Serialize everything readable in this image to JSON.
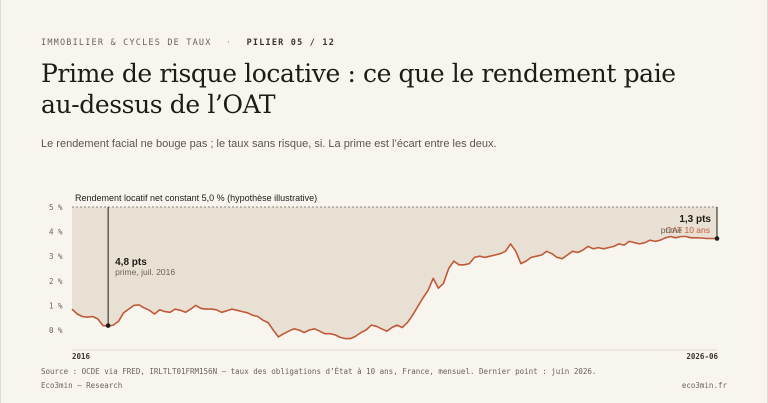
{
  "header": {
    "kicker": "IMMOBILIER & CYCLES DE TAUX",
    "separator": "·",
    "pillar": "PILIER 05 / 12",
    "title": "Prime de risque locative : ce que le rendement paie au-dessus de l’OAT",
    "subtitle": "Le rendement facial ne bouge pas ; le taux sans risque, si. La prime est l’écart entre les deux."
  },
  "colors": {
    "background": "#f8f5ee",
    "area_fill": "#e5dccd",
    "line": "#c0593a",
    "text": "#1e1b17",
    "muted": "#6b6459"
  },
  "chart_data": {
    "type": "area",
    "reference_line": {
      "value": 5.0,
      "label": "Rendement locatif net constant 5,0 % (hypothèse illustrative)"
    },
    "y_ticks": [
      "5 %",
      "4 %",
      "3 %",
      "2 %",
      "1 %",
      "0 %"
    ],
    "y_tick_values": [
      5,
      4,
      3,
      2,
      1,
      0
    ],
    "ylim": [
      -0.5,
      5
    ],
    "x_start_label": "2016",
    "x_end_label": "2026-06",
    "series": [
      {
        "name": "OAT 10 ans",
        "start": "2016-01",
        "frequency": "monthly",
        "values": [
          0.85,
          0.65,
          0.55,
          0.52,
          0.55,
          0.45,
          0.18,
          0.16,
          0.2,
          0.35,
          0.7,
          0.85,
          1.0,
          1.02,
          0.9,
          0.8,
          0.65,
          0.82,
          0.75,
          0.72,
          0.85,
          0.8,
          0.72,
          0.85,
          1.0,
          0.88,
          0.85,
          0.85,
          0.82,
          0.72,
          0.78,
          0.85,
          0.8,
          0.75,
          0.7,
          0.6,
          0.55,
          0.4,
          0.3,
          0.0,
          -0.28,
          -0.15,
          -0.05,
          0.05,
          0.0,
          -0.1,
          0.0,
          0.05,
          -0.05,
          -0.15,
          -0.15,
          -0.2,
          -0.3,
          -0.35,
          -0.35,
          -0.25,
          -0.1,
          0.0,
          0.2,
          0.15,
          0.05,
          -0.05,
          0.1,
          0.2,
          0.1,
          0.3,
          0.6,
          0.95,
          1.3,
          1.6,
          2.1,
          1.7,
          1.9,
          2.5,
          2.8,
          2.65,
          2.65,
          2.7,
          2.95,
          3.0,
          2.95,
          3.0,
          3.05,
          3.1,
          3.2,
          3.5,
          3.2,
          2.7,
          2.8,
          2.95,
          3.0,
          3.05,
          3.2,
          3.1,
          2.95,
          2.9,
          3.05,
          3.2,
          3.15,
          3.25,
          3.4,
          3.3,
          3.35,
          3.3,
          3.35,
          3.4,
          3.5,
          3.45,
          3.6,
          3.55,
          3.5,
          3.55,
          3.65,
          3.6,
          3.65,
          3.75,
          3.8,
          3.75,
          3.8,
          3.8,
          3.75,
          3.75,
          3.74,
          3.72,
          3.72,
          3.72
        ]
      }
    ],
    "annotations": [
      {
        "date": "2016-07",
        "value": 0.18,
        "label": "4,8 pts",
        "sub": "prime, juil. 2016"
      },
      {
        "date": "2026-06",
        "value": 3.72,
        "label": "1,3 pts",
        "sub": "prime",
        "series_label": "OAT 10 ans"
      }
    ]
  },
  "footer": {
    "source": "Source : OCDE via FRED, IRLTLT01FRM156N — taux des obligations d’État à 10 ans, France, mensuel. Dernier point : juin 2026.",
    "brand": "Eco3min — Research",
    "site": "eco3min.fr"
  }
}
